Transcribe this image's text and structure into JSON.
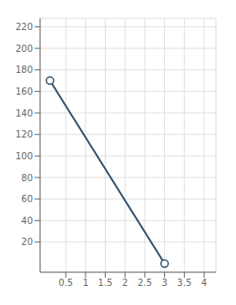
{
  "chart_data": {
    "type": "line",
    "x": [
      0.1,
      3.0
    ],
    "values": [
      170,
      0
    ],
    "color": "#2e4f6b",
    "marker": "circle",
    "xlim": [
      -0.15,
      4.3
    ],
    "ylim": [
      -8,
      228
    ],
    "xticks": [
      0.5,
      1,
      1.5,
      2,
      2.5,
      3,
      3.5,
      4
    ],
    "yticks": [
      20,
      40,
      60,
      80,
      100,
      120,
      140,
      160,
      180,
      200,
      220
    ],
    "grid": true
  }
}
